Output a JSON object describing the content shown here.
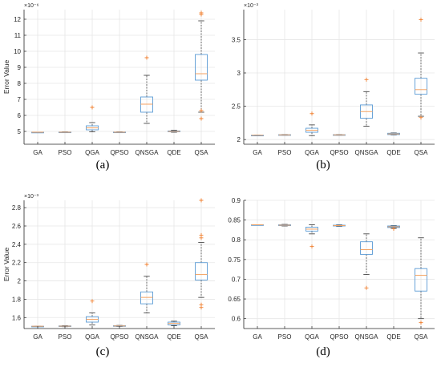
{
  "figure": {
    "style": {
      "box_color": "#5B9BD5",
      "median_color": "#F4A261",
      "whisker_color": "#333333",
      "outlier_color": "#F08030",
      "grid_color": "#E6E6E6",
      "axis_color": "#262626"
    }
  },
  "chart_data": [
    {
      "type": "box",
      "panel_label": "(a)",
      "ylabel": "Error Value",
      "multiplier_text": "×10⁻⁶",
      "ylim": [
        4.2,
        12.6
      ],
      "yticks": [
        5,
        6,
        7,
        8,
        9,
        10,
        11,
        12
      ],
      "grid": true,
      "categories": [
        "GA",
        "PSO",
        "QGA",
        "QPSO",
        "QNSGA",
        "QDE",
        "QSA"
      ],
      "boxes": [
        {
          "min": 4.95,
          "q1": 4.95,
          "median": 4.95,
          "q3": 4.95,
          "max": 4.95,
          "outliers": []
        },
        {
          "min": 4.93,
          "q1": 4.94,
          "median": 4.95,
          "q3": 4.96,
          "max": 4.97,
          "outliers": []
        },
        {
          "min": 4.97,
          "q1": 5.1,
          "median": 5.22,
          "q3": 5.35,
          "max": 5.55,
          "outliers": [
            6.5
          ]
        },
        {
          "min": 4.93,
          "q1": 4.94,
          "median": 4.95,
          "q3": 4.96,
          "max": 4.97,
          "outliers": []
        },
        {
          "min": 5.5,
          "q1": 6.2,
          "median": 6.7,
          "q3": 7.15,
          "max": 8.5,
          "outliers": [
            9.6
          ]
        },
        {
          "min": 4.95,
          "q1": 4.98,
          "median": 5.0,
          "q3": 5.03,
          "max": 5.07,
          "outliers": []
        },
        {
          "min": 6.2,
          "q1": 8.2,
          "median": 8.6,
          "q3": 9.8,
          "max": 11.9,
          "outliers": [
            12.3,
            12.4,
            6.3,
            5.8
          ]
        }
      ]
    },
    {
      "type": "box",
      "panel_label": "(b)",
      "ylabel": "",
      "multiplier_text": "×10⁻³",
      "ylim": [
        1.93,
        3.95
      ],
      "yticks": [
        2,
        2.5,
        3,
        3.5
      ],
      "grid": true,
      "categories": [
        "GA",
        "PSO",
        "QGA",
        "QPSO",
        "QNSGA",
        "QDE",
        "QSA"
      ],
      "boxes": [
        {
          "min": 2.065,
          "q1": 2.065,
          "median": 2.065,
          "q3": 2.065,
          "max": 2.065,
          "outliers": []
        },
        {
          "min": 2.065,
          "q1": 2.068,
          "median": 2.07,
          "q3": 2.073,
          "max": 2.076,
          "outliers": []
        },
        {
          "min": 2.06,
          "q1": 2.11,
          "median": 2.14,
          "q3": 2.17,
          "max": 2.22,
          "outliers": [
            2.39
          ]
        },
        {
          "min": 2.065,
          "q1": 2.068,
          "median": 2.07,
          "q3": 2.073,
          "max": 2.076,
          "outliers": []
        },
        {
          "min": 2.2,
          "q1": 2.32,
          "median": 2.42,
          "q3": 2.52,
          "max": 2.72,
          "outliers": [
            2.9
          ]
        },
        {
          "min": 2.07,
          "q1": 2.075,
          "median": 2.085,
          "q3": 2.095,
          "max": 2.1,
          "outliers": []
        },
        {
          "min": 2.35,
          "q1": 2.68,
          "median": 2.75,
          "q3": 2.92,
          "max": 3.3,
          "outliers": [
            3.8,
            2.33
          ]
        }
      ]
    },
    {
      "type": "box",
      "panel_label": "(c)",
      "ylabel": "Error Value",
      "multiplier_text": "×10⁻³",
      "ylim": [
        1.48,
        2.88
      ],
      "yticks": [
        1.6,
        1.8,
        2,
        2.2,
        2.4,
        2.6,
        2.8
      ],
      "grid": true,
      "categories": [
        "GA",
        "PSO",
        "QGA",
        "QPSO",
        "QNSGA",
        "QDE",
        "QSA"
      ],
      "boxes": [
        {
          "min": 1.505,
          "q1": 1.505,
          "median": 1.505,
          "q3": 1.505,
          "max": 1.505,
          "outliers": []
        },
        {
          "min": 1.5,
          "q1": 1.503,
          "median": 1.506,
          "q3": 1.509,
          "max": 1.512,
          "outliers": []
        },
        {
          "min": 1.52,
          "q1": 1.55,
          "median": 1.58,
          "q3": 1.61,
          "max": 1.65,
          "outliers": [
            1.78
          ]
        },
        {
          "min": 1.502,
          "q1": 1.505,
          "median": 1.508,
          "q3": 1.511,
          "max": 1.514,
          "outliers": []
        },
        {
          "min": 1.65,
          "q1": 1.75,
          "median": 1.82,
          "q3": 1.88,
          "max": 2.05,
          "outliers": [
            2.18
          ]
        },
        {
          "min": 1.51,
          "q1": 1.52,
          "median": 1.535,
          "q3": 1.55,
          "max": 1.56,
          "outliers": []
        },
        {
          "min": 1.82,
          "q1": 2.01,
          "median": 2.07,
          "q3": 2.2,
          "max": 2.42,
          "outliers": [
            2.5,
            2.47,
            1.74,
            1.71,
            2.88
          ]
        }
      ]
    },
    {
      "type": "box",
      "panel_label": "(d)",
      "ylabel": "",
      "multiplier_text": "",
      "ylim": [
        0.575,
        0.9
      ],
      "yticks": [
        0.6,
        0.65,
        0.7,
        0.75,
        0.8,
        0.85,
        0.9
      ],
      "grid": true,
      "categories": [
        "GA",
        "PSO",
        "QGA",
        "QPSO",
        "QNSGA",
        "QDE",
        "QSA"
      ],
      "boxes": [
        {
          "min": 0.838,
          "q1": 0.838,
          "median": 0.838,
          "q3": 0.838,
          "max": 0.838,
          "outliers": []
        },
        {
          "min": 0.835,
          "q1": 0.836,
          "median": 0.837,
          "q3": 0.838,
          "max": 0.839,
          "outliers": []
        },
        {
          "min": 0.815,
          "q1": 0.822,
          "median": 0.827,
          "q3": 0.832,
          "max": 0.838,
          "outliers": [
            0.783
          ]
        },
        {
          "min": 0.834,
          "q1": 0.835,
          "median": 0.836,
          "q3": 0.837,
          "max": 0.838,
          "outliers": []
        },
        {
          "min": 0.712,
          "q1": 0.763,
          "median": 0.775,
          "q3": 0.795,
          "max": 0.815,
          "outliers": [
            0.678
          ]
        },
        {
          "min": 0.829,
          "q1": 0.831,
          "median": 0.833,
          "q3": 0.835,
          "max": 0.836,
          "outliers": [
            0.828
          ]
        },
        {
          "min": 0.6,
          "q1": 0.67,
          "median": 0.71,
          "q3": 0.727,
          "max": 0.805,
          "outliers": [
            0.59
          ]
        }
      ]
    }
  ]
}
